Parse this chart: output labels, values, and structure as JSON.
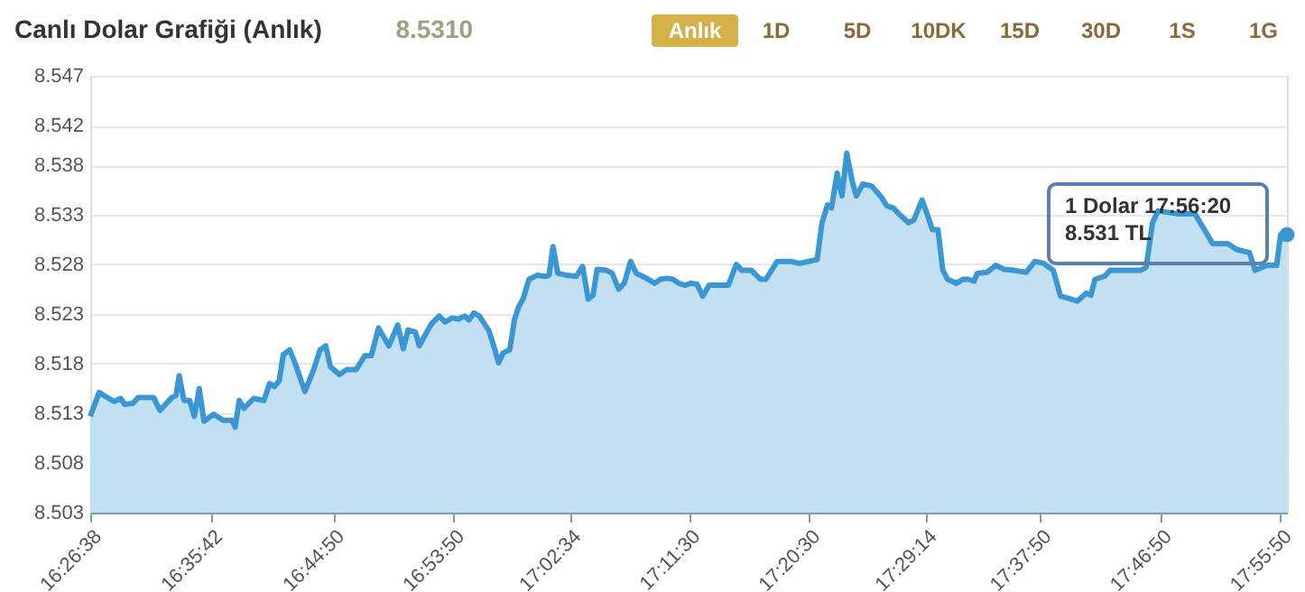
{
  "chart_data": {
    "type": "area",
    "title": "Canlı Dolar Grafiği (Anlık)",
    "subtitle": "8.5310",
    "x": [
      16.444,
      16.455,
      16.467,
      16.474,
      16.482,
      16.487,
      16.497,
      16.504,
      16.523,
      16.531,
      16.546,
      16.551,
      16.555,
      16.561,
      16.568,
      16.574,
      16.58,
      16.586,
      16.598,
      16.61,
      16.621,
      16.625,
      16.63,
      16.636,
      16.648,
      16.661,
      16.668,
      16.674,
      16.68,
      16.685,
      16.693,
      16.7,
      16.712,
      16.723,
      16.731,
      16.738,
      16.744,
      16.755,
      16.764,
      16.776,
      16.787,
      16.795,
      16.804,
      16.817,
      16.828,
      16.835,
      16.841,
      16.85,
      16.855,
      16.87,
      16.88,
      16.887,
      16.896,
      16.904,
      16.912,
      16.917,
      16.923,
      16.93,
      16.942,
      16.949,
      16.954,
      16.96,
      16.968,
      16.974,
      16.979,
      16.985,
      16.992,
      17.002,
      17.013,
      17.017,
      17.022,
      17.028,
      17.04,
      17.051,
      17.059,
      17.066,
      17.072,
      17.077,
      17.089,
      17.096,
      17.104,
      17.111,
      17.119,
      17.126,
      17.134,
      17.141,
      17.149,
      17.156,
      17.164,
      17.172,
      17.179,
      17.187,
      17.194,
      17.202,
      17.209,
      17.217,
      17.228,
      17.241,
      17.251,
      17.258,
      17.27,
      17.281,
      17.288,
      17.302,
      17.319,
      17.33,
      17.341,
      17.352,
      17.358,
      17.365,
      17.37,
      17.377,
      17.383,
      17.389,
      17.396,
      17.401,
      17.409,
      17.42,
      17.432,
      17.439,
      17.447,
      17.454,
      17.466,
      17.473,
      17.483,
      17.488,
      17.496,
      17.503,
      17.509,
      17.515,
      17.526,
      17.534,
      17.541,
      17.548,
      17.552,
      17.564,
      17.575,
      17.586,
      17.598,
      17.613,
      17.624,
      17.635,
      17.647,
      17.656,
      17.665,
      17.677,
      17.688,
      17.694,
      17.699,
      17.711,
      17.718,
      17.733,
      17.756,
      17.763,
      17.771,
      17.778,
      17.801,
      17.824,
      17.846,
      17.865,
      17.876,
      17.892,
      17.899,
      17.914,
      17.926,
      17.931,
      17.9389
    ],
    "series": [
      {
        "color": "#3a97d4",
        "values": [
          8.5127,
          8.5151,
          8.5145,
          8.5142,
          8.5145,
          8.5139,
          8.514,
          8.5146,
          8.5146,
          8.5133,
          8.5146,
          8.5148,
          8.5168,
          8.5143,
          8.5143,
          8.5127,
          8.5155,
          8.5122,
          8.5129,
          8.5123,
          8.5123,
          8.5116,
          8.5143,
          8.5135,
          8.5145,
          8.5143,
          8.516,
          8.5157,
          8.5163,
          8.5189,
          8.5194,
          8.518,
          8.5152,
          8.5174,
          8.5194,
          8.5198,
          8.5177,
          8.5169,
          8.5174,
          8.5174,
          8.5188,
          8.5188,
          8.5216,
          8.5198,
          8.5219,
          8.5195,
          8.5214,
          8.5212,
          8.5198,
          8.522,
          8.5228,
          8.5222,
          8.5226,
          8.5225,
          8.5228,
          8.5224,
          8.5231,
          8.5228,
          8.5213,
          8.5195,
          8.5181,
          8.5191,
          8.5194,
          8.5225,
          8.5237,
          8.5246,
          8.5265,
          8.5269,
          8.5268,
          8.5269,
          8.5298,
          8.5271,
          8.5269,
          8.5268,
          8.5278,
          8.5245,
          8.5249,
          8.5275,
          8.5274,
          8.5271,
          8.5255,
          8.5261,
          8.5283,
          8.5271,
          8.5268,
          8.5265,
          8.5261,
          8.5265,
          8.5266,
          8.5265,
          8.5261,
          8.5259,
          8.5261,
          8.526,
          8.5248,
          8.5259,
          8.5259,
          8.5259,
          8.528,
          8.5274,
          8.5274,
          8.5265,
          8.5265,
          8.5283,
          8.5283,
          8.5281,
          8.5283,
          8.5285,
          8.5322,
          8.534,
          8.5337,
          8.5372,
          8.5349,
          8.5392,
          8.5363,
          8.5349,
          8.5361,
          8.5359,
          8.5348,
          8.5339,
          8.5337,
          8.5331,
          8.5322,
          8.5325,
          8.5345,
          8.5334,
          8.5315,
          8.5315,
          8.5274,
          8.5265,
          8.5261,
          8.5265,
          8.5265,
          8.5263,
          8.5271,
          8.5272,
          8.5279,
          8.5275,
          8.5274,
          8.5272,
          8.5283,
          8.5281,
          8.5274,
          8.5248,
          8.5246,
          8.5243,
          8.5251,
          8.5249,
          8.5265,
          8.5268,
          8.5274,
          8.5274,
          8.5274,
          8.5277,
          8.5322,
          8.5334,
          8.5331,
          8.5331,
          8.5301,
          8.5301,
          8.5295,
          8.5292,
          8.5274,
          8.5279,
          8.5279,
          8.531,
          8.531
        ]
      }
    ],
    "xlim": [
      16.4439,
      17.9389
    ],
    "xticks": [
      {
        "value": 16.4439,
        "label": "16:26:38"
      },
      {
        "value": 16.595,
        "label": "16:35:42"
      },
      {
        "value": 16.7472,
        "label": "16:44:50"
      },
      {
        "value": 16.8972,
        "label": "16:53:50"
      },
      {
        "value": 17.0428,
        "label": "17:02:34"
      },
      {
        "value": 17.1917,
        "label": "17:11:30"
      },
      {
        "value": 17.3417,
        "label": "17:20:30"
      },
      {
        "value": 17.4872,
        "label": "17:29:14"
      },
      {
        "value": 17.6306,
        "label": "17:37:50"
      },
      {
        "value": 17.7806,
        "label": "17:46:50"
      },
      {
        "value": 17.9306,
        "label": "17:55:50"
      }
    ],
    "ylim": [
      8.503,
      8.547
    ],
    "yticks": [
      8.503,
      8.508,
      8.513,
      8.518,
      8.523,
      8.528,
      8.533,
      8.538,
      8.542,
      8.547
    ],
    "grid": "y",
    "annotations": [
      "Anlık",
      "1D",
      "5D",
      "10DK",
      "15D",
      "30D",
      "1S",
      "1G",
      {
        "text": "1 Dolar 17:56:20\n8.531 TL",
        "x": 17.9389,
        "y": 8.531
      }
    ]
  }
}
